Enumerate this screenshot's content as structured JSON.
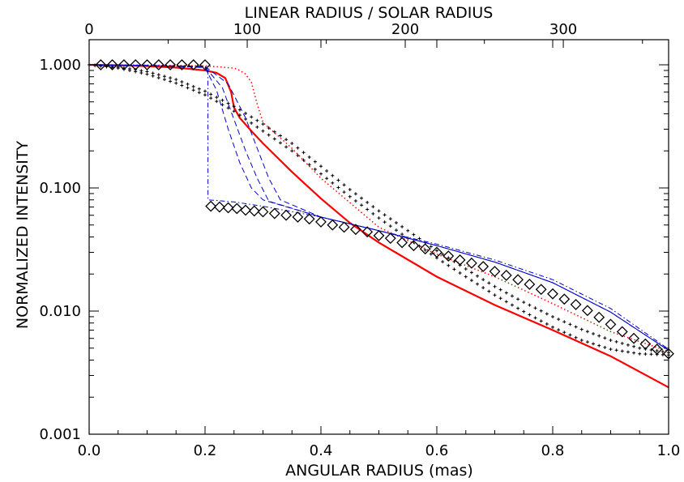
{
  "chart_data": {
    "type": "line",
    "title": "",
    "xlabel": "ANGULAR RADIUS (mas)",
    "ylabel": "NORMALIZED INTENSITY",
    "top_xlabel": "LINEAR RADIUS / SOLAR RADIUS",
    "xlim": [
      0.0,
      1.0
    ],
    "ylim": [
      0.001,
      1.3
    ],
    "yscale": "log",
    "grid": false,
    "legend": "none",
    "x_tick_labels": [
      "0.0",
      "0.2",
      "0.4",
      "0.6",
      "0.8",
      "1.0"
    ],
    "x_tick_values": [
      0.0,
      0.2,
      0.4,
      0.6,
      0.8,
      1.0
    ],
    "y_tick_labels": [
      "0.001",
      "0.010",
      "0.100",
      "1.000"
    ],
    "y_tick_values": [
      0.001,
      0.01,
      0.1,
      1.0
    ],
    "top_tick_labels": [
      "0",
      "100",
      "200",
      "300"
    ],
    "top_tick_values": [
      0.0,
      0.2728,
      0.5455,
      0.8183
    ],
    "series": [
      {
        "style": "solid",
        "color": "#ff0000",
        "x": [
          0.0,
          0.05,
          0.1,
          0.15,
          0.2,
          0.22,
          0.235,
          0.245,
          0.25,
          0.26,
          0.28,
          0.3,
          0.35,
          0.4,
          0.45,
          0.5,
          0.6,
          0.7,
          0.8,
          0.9,
          1.0
        ],
        "y": [
          1.0,
          0.99,
          0.975,
          0.95,
          0.9,
          0.86,
          0.78,
          0.6,
          0.45,
          0.37,
          0.29,
          0.23,
          0.135,
          0.082,
          0.052,
          0.036,
          0.019,
          0.0112,
          0.007,
          0.0043,
          0.0024
        ]
      },
      {
        "style": "dotted",
        "color": "#ff0000",
        "x": [
          0.0,
          0.1,
          0.2,
          0.25,
          0.26,
          0.27,
          0.28,
          0.29,
          0.3,
          0.35,
          0.4,
          0.5,
          0.6,
          0.7,
          0.8,
          0.9,
          1.0
        ],
        "y": [
          1.0,
          0.995,
          0.98,
          0.94,
          0.9,
          0.84,
          0.72,
          0.48,
          0.34,
          0.21,
          0.12,
          0.048,
          0.029,
          0.019,
          0.0115,
          0.0068,
          0.0047
        ]
      },
      {
        "style": "dotted",
        "color": "#000000",
        "x": [
          0.0,
          0.05,
          0.1,
          0.15,
          0.2,
          0.25,
          0.3,
          0.35,
          0.4,
          0.45,
          0.5,
          0.55,
          0.6,
          0.65,
          0.7,
          0.75,
          0.8,
          0.85,
          0.9,
          0.95,
          1.0
        ],
        "y": [
          1.0,
          0.94,
          0.84,
          0.71,
          0.57,
          0.42,
          0.29,
          0.2,
          0.13,
          0.085,
          0.057,
          0.039,
          0.027,
          0.019,
          0.0135,
          0.0099,
          0.0074,
          0.0058,
          0.0049,
          0.0045,
          0.0044
        ]
      },
      {
        "style": "dotted",
        "color": "#000000",
        "x": [
          0.0,
          0.05,
          0.1,
          0.15,
          0.2,
          0.25,
          0.3,
          0.35,
          0.4,
          0.45,
          0.5,
          0.55,
          0.6,
          0.65,
          0.7,
          0.75,
          0.8,
          0.85,
          0.9,
          0.95,
          1.0
        ],
        "y": [
          1.0,
          0.96,
          0.88,
          0.76,
          0.61,
          0.46,
          0.33,
          0.23,
          0.15,
          0.097,
          0.065,
          0.045,
          0.031,
          0.022,
          0.0158,
          0.0118,
          0.009,
          0.0071,
          0.0058,
          0.005,
          0.0046
        ]
      },
      {
        "style": "dashdot",
        "color": "#0000cc",
        "x": [
          0.0,
          0.1,
          0.2,
          0.205,
          0.2051,
          0.25,
          0.3,
          0.4,
          0.5,
          0.6,
          0.7,
          0.8,
          0.9,
          1.0
        ],
        "y": [
          1.0,
          0.99,
          0.96,
          0.93,
          0.08,
          0.077,
          0.071,
          0.058,
          0.045,
          0.035,
          0.026,
          0.018,
          0.0105,
          0.0049
        ]
      },
      {
        "style": "dashed",
        "color": "#0000cc",
        "x": [
          0.0,
          0.1,
          0.2,
          0.22,
          0.24,
          0.26,
          0.28,
          0.3,
          0.4,
          0.5,
          0.6,
          0.7,
          0.8,
          0.9,
          1.0
        ],
        "y": [
          1.0,
          0.99,
          0.95,
          0.62,
          0.3,
          0.16,
          0.1,
          0.08,
          0.058,
          0.045,
          0.034,
          0.025,
          0.017,
          0.0098,
          0.0048
        ]
      },
      {
        "style": "dashed",
        "color": "#0000cc",
        "x": [
          0.0,
          0.1,
          0.2,
          0.23,
          0.25,
          0.27,
          0.29,
          0.31,
          0.4,
          0.5,
          0.6,
          0.7,
          0.8,
          0.9,
          1.0
        ],
        "y": [
          1.0,
          0.99,
          0.96,
          0.65,
          0.36,
          0.2,
          0.12,
          0.078,
          0.058,
          0.045,
          0.034,
          0.025,
          0.017,
          0.0098,
          0.0048
        ]
      },
      {
        "style": "dashed",
        "color": "#0000cc",
        "x": [
          0.0,
          0.1,
          0.2,
          0.24,
          0.27,
          0.29,
          0.31,
          0.33,
          0.4,
          0.5,
          0.6,
          0.7,
          0.8,
          0.9,
          1.0
        ],
        "y": [
          1.0,
          0.99,
          0.97,
          0.7,
          0.37,
          0.21,
          0.12,
          0.08,
          0.058,
          0.045,
          0.034,
          0.025,
          0.017,
          0.0098,
          0.0048
        ]
      },
      {
        "style": "diamonds",
        "color": "#000000",
        "x": [
          0.02,
          0.04,
          0.06,
          0.08,
          0.1,
          0.12,
          0.14,
          0.16,
          0.18,
          0.2,
          0.21,
          0.225,
          0.24,
          0.255,
          0.27,
          0.285,
          0.3,
          0.32,
          0.34,
          0.36,
          0.38,
          0.4,
          0.42,
          0.44,
          0.46,
          0.48,
          0.5,
          0.52,
          0.54,
          0.56,
          0.58,
          0.6,
          0.62,
          0.64,
          0.66,
          0.68,
          0.7,
          0.72,
          0.74,
          0.76,
          0.78,
          0.8,
          0.82,
          0.84,
          0.86,
          0.88,
          0.9,
          0.92,
          0.94,
          0.96,
          0.98,
          1.0
        ],
        "y": [
          1.0,
          1.0,
          1.0,
          1.0,
          1.0,
          1.0,
          1.0,
          1.0,
          1.0,
          1.0,
          0.071,
          0.07,
          0.069,
          0.068,
          0.066,
          0.065,
          0.064,
          0.062,
          0.06,
          0.058,
          0.056,
          0.053,
          0.05,
          0.048,
          0.046,
          0.044,
          0.041,
          0.039,
          0.036,
          0.034,
          0.032,
          0.03,
          0.028,
          0.026,
          0.0245,
          0.023,
          0.021,
          0.0195,
          0.018,
          0.0165,
          0.015,
          0.0138,
          0.0125,
          0.0113,
          0.0101,
          0.0089,
          0.0078,
          0.0068,
          0.006,
          0.0054,
          0.0049,
          0.0045
        ]
      }
    ]
  }
}
